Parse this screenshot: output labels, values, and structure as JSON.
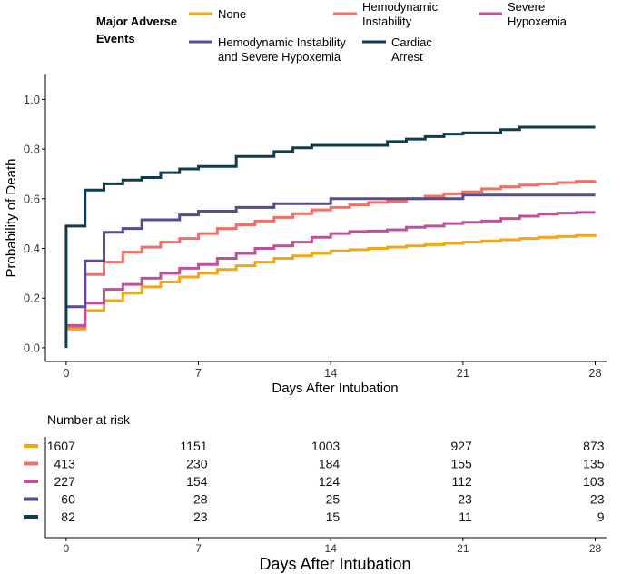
{
  "chart_data": {
    "type": "line",
    "subtype": "kaplan-meier-step",
    "legend": {
      "title_line1": "Major Adverse",
      "title_line2": "Events",
      "placement": "top",
      "entries": [
        {
          "key": "none",
          "line1": "None",
          "line2": ""
        },
        {
          "key": "hemo",
          "line1": "Hemodynamic",
          "line2": "Instability"
        },
        {
          "key": "hypox",
          "line1": "Severe",
          "line2": "Hypoxemia"
        },
        {
          "key": "both",
          "line1": "Hemodynamic Instability",
          "line2": "and Severe Hypoxemia"
        },
        {
          "key": "arrest",
          "line1": "Cardiac",
          "line2": "Arrest"
        }
      ]
    },
    "ylabel": "Probability of Death",
    "xlabel": "Days After Intubation",
    "xlim": [
      -1.1,
      28.6
    ],
    "ylim": [
      -0.055,
      1.1
    ],
    "x_ticks": [
      0,
      7,
      14,
      21,
      28
    ],
    "y_ticks": [
      0.0,
      0.2,
      0.4,
      0.6,
      0.8,
      1.0
    ],
    "y_tick_labels": [
      "0.0",
      "0.2",
      "0.4",
      "0.6",
      "0.8",
      "1.0"
    ],
    "series": [
      {
        "key": "none",
        "name": "None",
        "color": "#f3a712",
        "points": [
          [
            0,
            0.075
          ],
          [
            1,
            0.15
          ],
          [
            2,
            0.19
          ],
          [
            3,
            0.22
          ],
          [
            4,
            0.245
          ],
          [
            5,
            0.265
          ],
          [
            6,
            0.285
          ],
          [
            7,
            0.3
          ],
          [
            8,
            0.315
          ],
          [
            9,
            0.33
          ],
          [
            10,
            0.345
          ],
          [
            11,
            0.36
          ],
          [
            12,
            0.37
          ],
          [
            13,
            0.38
          ],
          [
            14,
            0.39
          ],
          [
            15,
            0.395
          ],
          [
            16,
            0.4
          ],
          [
            17,
            0.405
          ],
          [
            18,
            0.41
          ],
          [
            19,
            0.415
          ],
          [
            20,
            0.42
          ],
          [
            21,
            0.425
          ],
          [
            22,
            0.43
          ],
          [
            23,
            0.435
          ],
          [
            24,
            0.44
          ],
          [
            25,
            0.445
          ],
          [
            26,
            0.448
          ],
          [
            27,
            0.452
          ],
          [
            28,
            0.456
          ]
        ]
      },
      {
        "key": "hemo",
        "name": "Hemodynamic Instability",
        "color": "#f07067",
        "points": [
          [
            0,
            0.085
          ],
          [
            1,
            0.295
          ],
          [
            2,
            0.345
          ],
          [
            3,
            0.385
          ],
          [
            4,
            0.405
          ],
          [
            5,
            0.425
          ],
          [
            6,
            0.44
          ],
          [
            7,
            0.46
          ],
          [
            8,
            0.48
          ],
          [
            9,
            0.495
          ],
          [
            10,
            0.51
          ],
          [
            11,
            0.525
          ],
          [
            12,
            0.54
          ],
          [
            13,
            0.555
          ],
          [
            14,
            0.565
          ],
          [
            15,
            0.575
          ],
          [
            16,
            0.585
          ],
          [
            17,
            0.59
          ],
          [
            18,
            0.6
          ],
          [
            19,
            0.61
          ],
          [
            20,
            0.62
          ],
          [
            21,
            0.628
          ],
          [
            22,
            0.64
          ],
          [
            23,
            0.648
          ],
          [
            24,
            0.655
          ],
          [
            25,
            0.66
          ],
          [
            26,
            0.665
          ],
          [
            27,
            0.67
          ],
          [
            28,
            0.672
          ]
        ]
      },
      {
        "key": "hypox",
        "name": "Severe Hypoxemia",
        "color": "#c0509a",
        "points": [
          [
            0,
            0.09
          ],
          [
            1,
            0.18
          ],
          [
            2,
            0.235
          ],
          [
            3,
            0.255
          ],
          [
            4,
            0.28
          ],
          [
            5,
            0.3
          ],
          [
            6,
            0.32
          ],
          [
            7,
            0.335
          ],
          [
            8,
            0.36
          ],
          [
            9,
            0.38
          ],
          [
            10,
            0.4
          ],
          [
            11,
            0.41
          ],
          [
            12,
            0.425
          ],
          [
            13,
            0.445
          ],
          [
            14,
            0.46
          ],
          [
            15,
            0.468
          ],
          [
            16,
            0.47
          ],
          [
            17,
            0.475
          ],
          [
            18,
            0.485
          ],
          [
            19,
            0.49
          ],
          [
            20,
            0.5
          ],
          [
            21,
            0.505
          ],
          [
            22,
            0.51
          ],
          [
            23,
            0.52
          ],
          [
            24,
            0.53
          ],
          [
            25,
            0.538
          ],
          [
            26,
            0.542
          ],
          [
            27,
            0.545
          ],
          [
            28,
            0.545
          ]
        ]
      },
      {
        "key": "both",
        "name": "Hemodynamic Instability and Severe Hypoxemia",
        "color": "#5b4a8f",
        "points": [
          [
            0,
            0.165
          ],
          [
            1,
            0.35
          ],
          [
            2,
            0.465
          ],
          [
            3,
            0.48
          ],
          [
            4,
            0.515
          ],
          [
            5,
            0.515
          ],
          [
            6,
            0.535
          ],
          [
            7,
            0.55
          ],
          [
            8,
            0.55
          ],
          [
            9,
            0.565
          ],
          [
            10,
            0.565
          ],
          [
            11,
            0.58
          ],
          [
            12,
            0.58
          ],
          [
            13,
            0.58
          ],
          [
            14,
            0.6
          ],
          [
            15,
            0.6
          ],
          [
            16,
            0.6
          ],
          [
            17,
            0.6
          ],
          [
            18,
            0.6
          ],
          [
            19,
            0.6
          ],
          [
            20,
            0.6
          ],
          [
            21,
            0.615
          ],
          [
            22,
            0.615
          ],
          [
            23,
            0.615
          ],
          [
            24,
            0.615
          ],
          [
            25,
            0.615
          ],
          [
            26,
            0.615
          ],
          [
            27,
            0.615
          ],
          [
            28,
            0.615
          ]
        ]
      },
      {
        "key": "arrest",
        "name": "Cardiac Arrest",
        "color": "#0f3d4f",
        "points": [
          [
            0,
            0.0
          ],
          [
            0,
            0.49
          ],
          [
            1,
            0.635
          ],
          [
            2,
            0.66
          ],
          [
            3,
            0.675
          ],
          [
            4,
            0.685
          ],
          [
            5,
            0.705
          ],
          [
            6,
            0.72
          ],
          [
            7,
            0.73
          ],
          [
            8,
            0.73
          ],
          [
            9,
            0.77
          ],
          [
            10,
            0.77
          ],
          [
            11,
            0.79
          ],
          [
            12,
            0.805
          ],
          [
            13,
            0.815
          ],
          [
            14,
            0.815
          ],
          [
            15,
            0.815
          ],
          [
            16,
            0.815
          ],
          [
            17,
            0.83
          ],
          [
            18,
            0.84
          ],
          [
            19,
            0.85
          ],
          [
            20,
            0.86
          ],
          [
            21,
            0.865
          ],
          [
            22,
            0.865
          ],
          [
            23,
            0.878
          ],
          [
            24,
            0.888
          ],
          [
            25,
            0.888
          ],
          [
            26,
            0.888
          ],
          [
            27,
            0.888
          ],
          [
            28,
            0.888
          ]
        ]
      }
    ],
    "risk_table": {
      "title": "Number at risk",
      "xlabel": "Days After Intubation",
      "x_ticks": [
        0,
        7,
        14,
        21,
        28
      ],
      "rows": [
        {
          "key": "none",
          "color": "#f3a712",
          "values": [
            "1607",
            "1151",
            "1003",
            "927",
            "873"
          ]
        },
        {
          "key": "hemo",
          "color": "#f07067",
          "values": [
            "413",
            "230",
            "184",
            "155",
            "135"
          ]
        },
        {
          "key": "hypox",
          "color": "#c0509a",
          "values": [
            "227",
            "154",
            "124",
            "112",
            "103"
          ]
        },
        {
          "key": "both",
          "color": "#5b4a8f",
          "values": [
            "60",
            "28",
            "25",
            "23",
            "23"
          ]
        },
        {
          "key": "arrest",
          "color": "#0f3d4f",
          "values": [
            "82",
            "23",
            "15",
            "11",
            "9"
          ]
        }
      ]
    }
  }
}
